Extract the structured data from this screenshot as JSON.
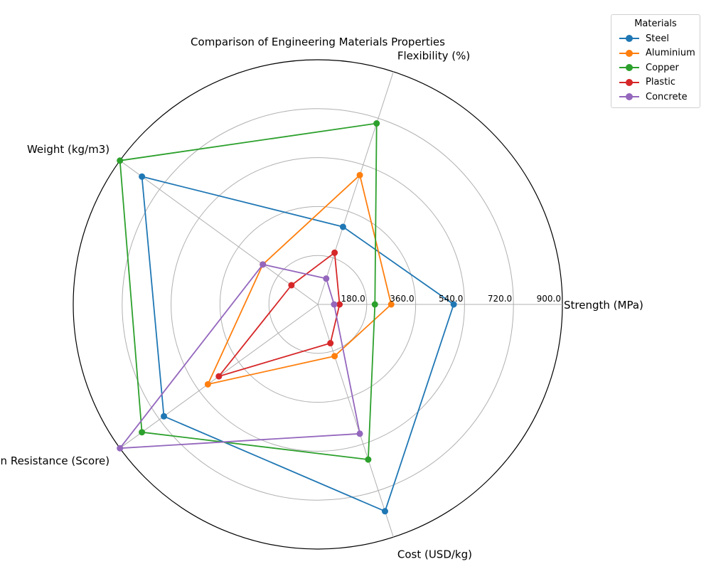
{
  "chart_data": {
    "type": "radar",
    "title": "Comparison of Engineering Materials Properties",
    "axes": [
      "Strength (MPa)",
      "Flexibility (%)",
      "Weight (kg/m3)",
      "Corrosion Resistance (Score)",
      "Cost (USD/kg)"
    ],
    "radial_ticks": [
      "180.0",
      "360.0",
      "540.0",
      "720.0",
      "900.0"
    ],
    "rlim": [
      0,
      900
    ],
    "grid": true,
    "legend_title": "Materials",
    "legend_position": "top-right, outside",
    "series": [
      {
        "name": "Steel",
        "color": "#1f77b4",
        "values": [
          500,
          300,
          800,
          700,
          800
        ]
      },
      {
        "name": "Aluminium",
        "color": "#ff7f0e",
        "values": [
          270,
          500,
          250,
          500,
          200
        ]
      },
      {
        "name": "Copper",
        "color": "#2ca02c",
        "values": [
          210,
          700,
          900,
          800,
          600
        ]
      },
      {
        "name": "Plastic",
        "color": "#d62728",
        "values": [
          80,
          200,
          120,
          450,
          150
        ]
      },
      {
        "name": "Concrete",
        "color": "#9467bd",
        "values": [
          60,
          100,
          250,
          900,
          500
        ]
      }
    ]
  }
}
